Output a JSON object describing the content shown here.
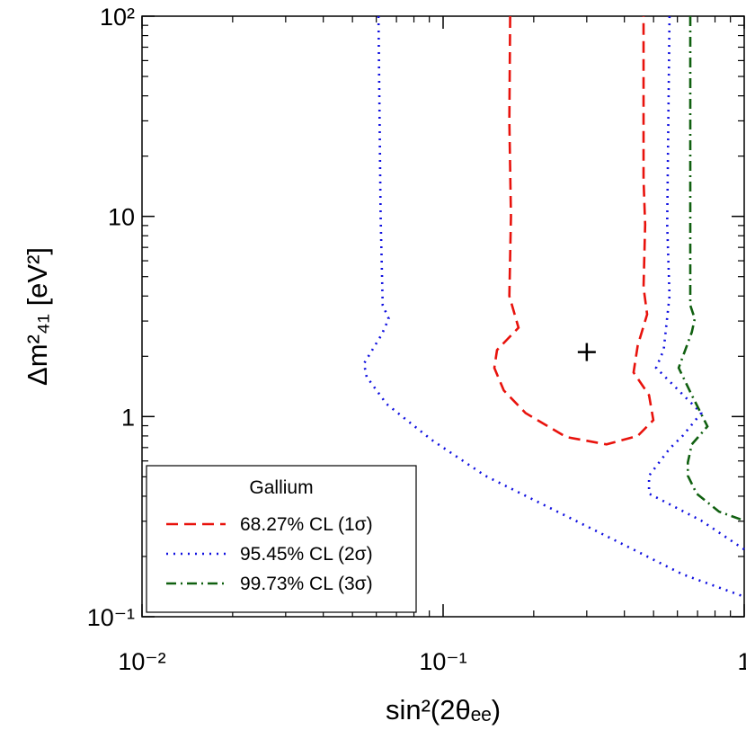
{
  "chart_data": {
    "type": "line",
    "xlabel": "sin²(2θₑₑ)",
    "ylabel": "Δm²₄₁   [eV²]",
    "xscale": "log",
    "yscale": "log",
    "xlim": [
      0.01,
      1
    ],
    "ylim": [
      0.1,
      100
    ],
    "xticks": [
      {
        "value": 0.01,
        "label": "10⁻²"
      },
      {
        "value": 0.1,
        "label": "10⁻¹"
      },
      1
    ],
    "yticks": [
      {
        "value": 0.1,
        "label": "10⁻¹"
      },
      1,
      10,
      {
        "value": 100,
        "label": "10²"
      }
    ],
    "legend": "lower left",
    "legend_title": "Gallium",
    "series": [
      {
        "name": "68.27% CL (1σ)",
        "color": "#e8120c",
        "style": "dashed",
        "x": [
          0.167,
          0.166,
          0.168,
          0.166,
          0.178,
          0.151,
          0.148,
          0.159,
          0.188,
          0.256,
          0.349,
          0.443,
          0.499,
          0.483,
          0.429,
          0.443,
          0.476,
          0.463,
          0.469,
          0.463,
          0.463
        ],
        "values": [
          100,
          30,
          10,
          4.0,
          2.78,
          2.15,
          1.75,
          1.35,
          1.04,
          0.79,
          0.726,
          0.8,
          0.96,
          1.28,
          1.66,
          2.26,
          3.24,
          4.42,
          9.1,
          15.3,
          100
        ]
      },
      {
        "name": "95.45% CL (2σ)",
        "color": "#1010e0",
        "style": "dotted",
        "x": [
          0.061,
          0.062,
          0.063,
          0.066,
          0.0626,
          0.0546,
          0.0557,
          0.0649,
          0.0915,
          0.138,
          0.275,
          0.415,
          0.624,
          1.0,
          null,
          1.0,
          0.72,
          0.483,
          0.483,
          0.565,
          0.624,
          0.72,
          0.606,
          0.51,
          0.54,
          0.565,
          0.555,
          0.565
        ],
        "values": [
          100,
          10,
          3.6,
          3.08,
          2.58,
          1.84,
          1.58,
          1.155,
          0.765,
          0.506,
          0.302,
          0.222,
          0.163,
          0.126,
          null,
          0.217,
          0.302,
          0.412,
          0.506,
          0.69,
          0.8,
          1.04,
          1.35,
          1.75,
          2.15,
          4.0,
          9.1,
          100
        ]
      },
      {
        "name": "99.73% CL (3σ)",
        "color": "#106010",
        "style": "dashdot",
        "x": [
          0.662,
          0.662,
          0.662,
          0.685,
          0.67,
          0.606,
          0.67,
          0.755,
          0.67,
          0.65,
          0.65,
          0.695,
          0.825,
          1.0
        ],
        "values": [
          100,
          10,
          3.6,
          3.08,
          2.64,
          1.75,
          1.28,
          0.893,
          0.726,
          0.59,
          0.506,
          0.412,
          0.335,
          0.302
        ]
      }
    ],
    "best_fit": {
      "x": 0.3,
      "y": 2.1
    }
  }
}
